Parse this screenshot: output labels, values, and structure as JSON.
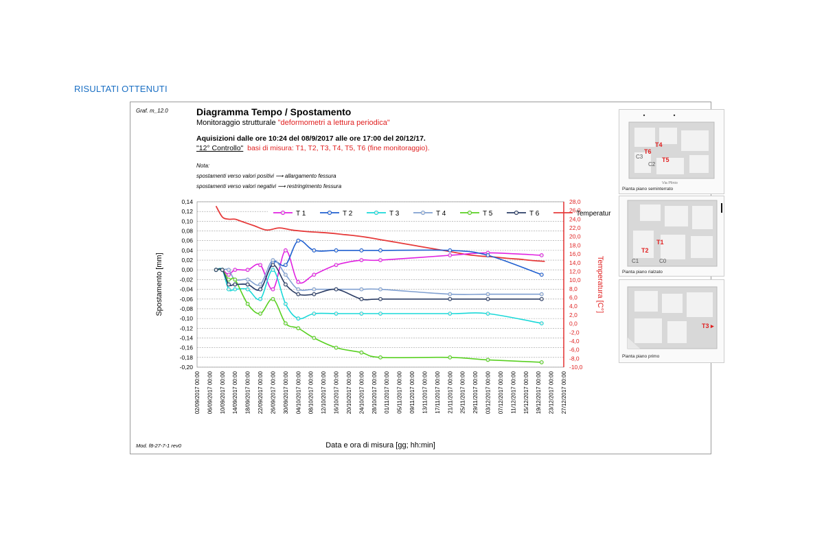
{
  "page": {
    "heading": "RISULTATI OTTENUTI"
  },
  "header": {
    "code": "Graf. m_12.0",
    "title": "Diagramma Tempo / Spostamento",
    "subtitle_prefix": "Monitoraggio strutturale ",
    "subtitle_highlight": "\"deformometri a lettura periodica\"",
    "acquisition": "Aquisizioni dalle ore 10:24 del 08/9/2017 alle ore 17:00 del 20/12/17.",
    "control_label": "\"12° Controllo\"",
    "control_detail": "basi di misura: T1, T2, T3, T4, T5, T6 (fine monitoraggio).",
    "note_title": "Nota:",
    "note_positive_a": "spostamenti verso valori positivi",
    "note_positive_b": "allargamento fessura",
    "note_negative_a": "spostamenti verso valori negativi",
    "note_negative_b": "restringimento fessura",
    "arrow": "⟶",
    "model": "Mod. f8-27-7-1 rev0"
  },
  "colors": {
    "T1": "#e020e0",
    "T2": "#1f5fd0",
    "T3": "#18d8d8",
    "T4": "#7f9fd0",
    "T5": "#58d020",
    "T6": "#2a3c64",
    "Temperatura": "#e63a3a"
  },
  "chart_data": {
    "type": "line",
    "ylabel": "Spostamento [mm]",
    "y2label": "Temperatura [C°]",
    "xlabel": "Data e ora di misura [gg; hh:min]",
    "ylim": [
      -0.2,
      0.14
    ],
    "y2lim": [
      -10,
      28
    ],
    "ytick_labels": [
      "0,14",
      "0,12",
      "0,10",
      "0,08",
      "0,06",
      "0,04",
      "0,02",
      "0,00",
      "-0,02",
      "-0,04",
      "-0,06",
      "-0,08",
      "-0,10",
      "-0,12",
      "-0,14",
      "-0,16",
      "-0,18",
      "-0,20"
    ],
    "y2tick_labels": [
      "28,0",
      "26,0",
      "24,0",
      "22,0",
      "20,0",
      "18,0",
      "16,0",
      "14,0",
      "12,0",
      "10,0",
      "8,0",
      "6,0",
      "4,0",
      "2,0",
      "0,0",
      "-2,0",
      "-4,0",
      "-6,0",
      "-8,0",
      "-10,0"
    ],
    "x_tick_labels": [
      "02/09/2017 00:00",
      "06/09/2017 00:00",
      "10/09/2017 00:00",
      "14/09/2017 00:00",
      "18/09/2017 00:00",
      "22/09/2017 00:00",
      "26/09/2017 00:00",
      "30/09/2017 00:00",
      "04/10/2017 00:00",
      "08/10/2017 00:00",
      "12/10/2017 00:00",
      "16/10/2017 00:00",
      "20/10/2017 00:00",
      "24/10/2017 00:00",
      "28/10/2017 00:00",
      "01/11/2017 00:00",
      "05/11/2017 00:00",
      "09/11/2017 00:00",
      "13/11/2017 00:00",
      "17/11/2017 00:00",
      "21/11/2017 00:00",
      "25/11/2017 00:00",
      "29/11/2017 00:00",
      "03/12/2017 00:00",
      "07/12/2017 00:00",
      "11/12/2017 00:00",
      "15/12/2017 00:00",
      "19/12/2017 00:00",
      "23/12/2017 00:00",
      "27/12/2017 00:00"
    ],
    "x_dates": [
      "08/09/2017",
      "10/09/2017",
      "12/09/2017",
      "14/09/2017",
      "18/09/2017",
      "22/09/2017",
      "26/09/2017",
      "30/09/2017",
      "04/10/2017",
      "09/10/2017",
      "16/10/2017",
      "24/10/2017",
      "30/10/2017",
      "21/11/2017",
      "03/12/2017",
      "20/12/2017"
    ],
    "x_days": [
      6,
      8,
      10,
      12,
      16,
      20,
      24,
      28,
      32,
      37,
      44,
      52,
      58,
      80,
      92,
      109
    ],
    "series": [
      {
        "name": "T 1",
        "x": [
          6,
          8,
          10,
          12,
          16,
          20,
          24,
          28,
          32,
          37,
          44,
          52,
          58,
          80,
          92,
          109
        ],
        "values": [
          0.0,
          0.0,
          -0.01,
          0.0,
          0.0,
          0.01,
          -0.04,
          0.04,
          -0.025,
          -0.01,
          0.01,
          0.02,
          0.02,
          0.03,
          0.035,
          0.03
        ]
      },
      {
        "name": "T 2",
        "x": [
          6,
          8,
          10,
          12,
          16,
          20,
          24,
          28,
          32,
          37,
          44,
          52,
          58,
          80,
          92,
          109
        ],
        "values": [
          0.0,
          0.0,
          -0.03,
          -0.03,
          -0.03,
          -0.04,
          0.015,
          0.01,
          0.06,
          0.04,
          0.04,
          0.04,
          0.04,
          0.04,
          0.03,
          -0.01
        ]
      },
      {
        "name": "T 3",
        "x": [
          6,
          8,
          10,
          12,
          16,
          20,
          24,
          28,
          32,
          37,
          44,
          52,
          58,
          80,
          92,
          109
        ],
        "values": [
          0.0,
          0.0,
          -0.04,
          -0.04,
          -0.04,
          -0.06,
          0.0,
          -0.07,
          -0.1,
          -0.09,
          -0.09,
          -0.09,
          -0.09,
          -0.09,
          -0.09,
          -0.11
        ]
      },
      {
        "name": "T 4",
        "x": [
          6,
          8,
          10,
          12,
          16,
          20,
          24,
          28,
          32,
          37,
          44,
          52,
          58,
          80,
          92,
          109
        ],
        "values": [
          0.0,
          0.0,
          0.0,
          -0.02,
          -0.02,
          -0.03,
          0.02,
          -0.01,
          -0.04,
          -0.04,
          -0.04,
          -0.04,
          -0.04,
          -0.05,
          -0.05,
          -0.05
        ]
      },
      {
        "name": "T 5",
        "x": [
          6,
          8,
          10,
          12,
          16,
          20,
          24,
          28,
          32,
          37,
          44,
          52,
          58,
          80,
          92,
          109
        ],
        "values": [
          0.0,
          0.0,
          -0.02,
          -0.02,
          -0.07,
          -0.09,
          -0.06,
          -0.11,
          -0.12,
          -0.14,
          -0.16,
          -0.17,
          -0.18,
          -0.18,
          -0.185,
          -0.19
        ]
      },
      {
        "name": "T 6",
        "x": [
          6,
          8,
          10,
          12,
          16,
          20,
          24,
          28,
          32,
          37,
          44,
          52,
          58,
          80,
          92,
          109
        ],
        "values": [
          0.0,
          0.0,
          -0.03,
          -0.03,
          -0.03,
          -0.04,
          0.01,
          -0.03,
          -0.05,
          -0.05,
          -0.04,
          -0.06,
          -0.06,
          -0.06,
          -0.06,
          -0.06
        ]
      },
      {
        "name": "Temperatura",
        "axis": "right",
        "x": [
          6,
          8,
          10,
          12,
          14,
          18,
          22,
          26,
          30,
          34,
          38,
          42,
          46,
          50,
          54,
          58,
          62,
          66,
          70,
          74,
          78,
          82,
          86,
          90,
          94,
          98,
          102,
          106,
          110
        ],
        "values": [
          27.0,
          24.5,
          24.0,
          24.0,
          23.5,
          22.5,
          21.5,
          22.0,
          21.5,
          21.2,
          21.0,
          20.8,
          20.5,
          20.2,
          19.8,
          19.3,
          18.8,
          18.3,
          17.8,
          17.3,
          16.8,
          16.3,
          15.8,
          15.5,
          15.3,
          15.0,
          14.8,
          14.5,
          14.3
        ]
      }
    ],
    "legend_position": "top",
    "grid": true
  },
  "plans": [
    {
      "caption": "Pianta piano seminterrato",
      "street": "Via Plinio",
      "labels": [
        "T4",
        "T6",
        "T5"
      ],
      "gray_labels": [
        "C3",
        "C2"
      ]
    },
    {
      "caption": "Pianta piano rialzato",
      "labels": [
        "T1",
        "T2"
      ],
      "gray_labels": [
        "C1",
        "C0"
      ]
    },
    {
      "caption": "Pianta piano primo",
      "labels": [
        "T3"
      ],
      "gray_labels": []
    }
  ]
}
